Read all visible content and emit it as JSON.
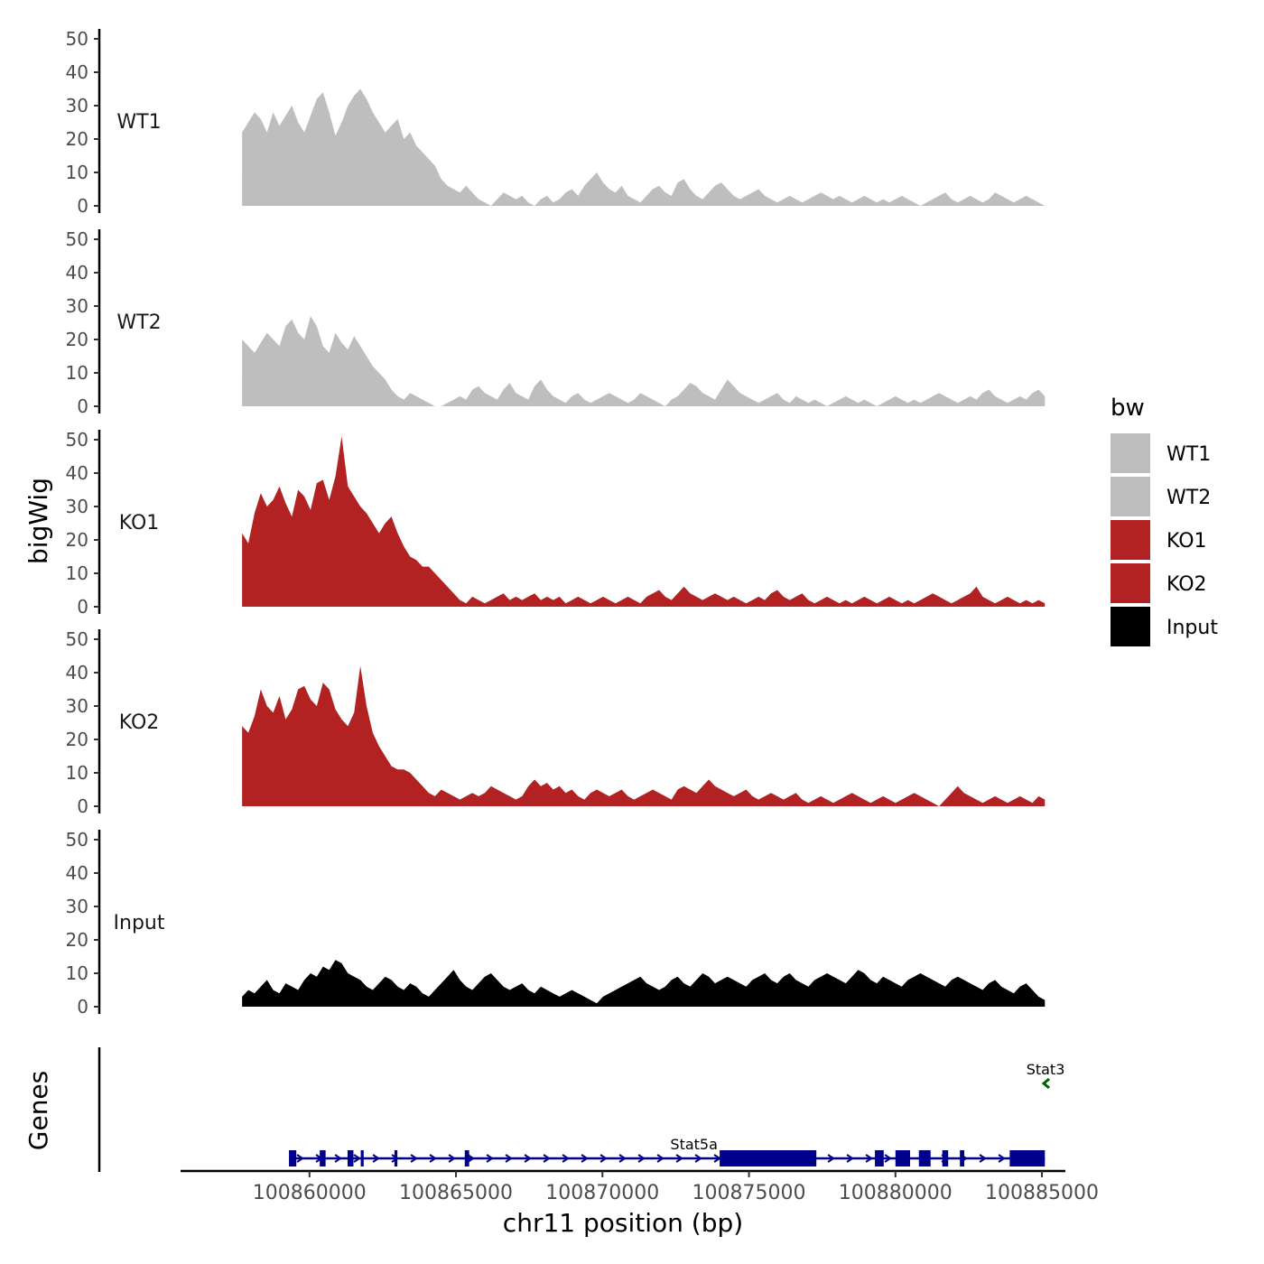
{
  "chart_data": {
    "type": "area",
    "ylabel": "bigWig",
    "xlabel": "chr11 position (bp)",
    "ylim": [
      0,
      50
    ],
    "yticks": [
      0,
      10,
      20,
      30,
      40,
      50
    ],
    "xlim": [
      100855600,
      100885800
    ],
    "xticks": [
      100860000,
      100865000,
      100870000,
      100875000,
      100880000,
      100885000
    ],
    "xtick_labels": [
      "100860000",
      "100865000",
      "100870000",
      "100875000",
      "100880000",
      "100885000"
    ],
    "signal_range": [
      100857700,
      100885100
    ],
    "legend": {
      "title": "bw",
      "position": "right",
      "entries": [
        {
          "label": "WT1",
          "color": "#bebebe"
        },
        {
          "label": "WT2",
          "color": "#bebebe"
        },
        {
          "label": "KO1",
          "color": "#b22222"
        },
        {
          "label": "KO2",
          "color": "#b22222"
        },
        {
          "label": "Input",
          "color": "#000000"
        }
      ]
    },
    "series": [
      {
        "name": "WT1",
        "color": "#bebebe",
        "values": [
          22,
          25,
          28,
          26,
          22,
          28,
          24,
          27,
          30,
          25,
          22,
          27,
          32,
          34,
          28,
          21,
          25,
          30,
          33,
          35,
          32,
          28,
          25,
          22,
          24,
          26,
          20,
          22,
          18,
          16,
          14,
          12,
          8,
          6,
          5,
          4,
          6,
          4,
          2,
          1,
          0,
          2,
          4,
          3,
          2,
          3,
          1,
          0,
          2,
          3,
          1,
          2,
          4,
          5,
          3,
          6,
          8,
          10,
          7,
          5,
          4,
          6,
          3,
          2,
          1,
          3,
          5,
          6,
          4,
          3,
          7,
          8,
          5,
          3,
          2,
          4,
          6,
          7,
          5,
          3,
          2,
          3,
          4,
          5,
          3,
          2,
          1,
          2,
          3,
          2,
          1,
          2,
          3,
          4,
          3,
          2,
          3,
          2,
          1,
          2,
          3,
          2,
          1,
          2,
          1,
          2,
          3,
          2,
          1,
          0,
          1,
          2,
          3,
          4,
          2,
          1,
          2,
          3,
          2,
          1,
          2,
          4,
          3,
          2,
          1,
          2,
          3,
          2,
          1,
          0
        ]
      },
      {
        "name": "WT2",
        "color": "#bebebe",
        "values": [
          20,
          18,
          16,
          19,
          22,
          20,
          18,
          24,
          26,
          22,
          20,
          27,
          24,
          18,
          16,
          22,
          19,
          17,
          21,
          18,
          15,
          12,
          10,
          8,
          5,
          3,
          2,
          4,
          3,
          2,
          1,
          0,
          0,
          1,
          2,
          3,
          2,
          5,
          6,
          4,
          3,
          2,
          5,
          7,
          4,
          3,
          2,
          6,
          8,
          5,
          3,
          2,
          1,
          3,
          4,
          2,
          1,
          2,
          3,
          4,
          3,
          2,
          1,
          2,
          4,
          3,
          2,
          1,
          0,
          2,
          3,
          5,
          7,
          6,
          4,
          3,
          2,
          5,
          8,
          6,
          4,
          3,
          2,
          1,
          2,
          3,
          4,
          2,
          1,
          3,
          2,
          1,
          2,
          1,
          0,
          1,
          2,
          3,
          2,
          1,
          2,
          1,
          0,
          1,
          2,
          3,
          2,
          1,
          2,
          1,
          2,
          3,
          4,
          3,
          2,
          1,
          2,
          3,
          2,
          4,
          5,
          3,
          2,
          1,
          2,
          3,
          2,
          4,
          5,
          3
        ]
      },
      {
        "name": "KO1",
        "color": "#b22222",
        "values": [
          22,
          19,
          28,
          34,
          30,
          32,
          36,
          31,
          27,
          35,
          33,
          29,
          37,
          38,
          32,
          39,
          51,
          36,
          33,
          30,
          28,
          25,
          22,
          25,
          27,
          22,
          18,
          15,
          14,
          12,
          12,
          10,
          8,
          6,
          4,
          2,
          1,
          3,
          2,
          1,
          2,
          3,
          4,
          2,
          3,
          2,
          3,
          4,
          2,
          3,
          2,
          3,
          1,
          2,
          3,
          2,
          1,
          2,
          3,
          2,
          1,
          2,
          3,
          2,
          1,
          3,
          4,
          5,
          3,
          2,
          4,
          6,
          4,
          3,
          2,
          3,
          4,
          3,
          2,
          3,
          2,
          1,
          2,
          3,
          2,
          4,
          5,
          3,
          2,
          3,
          4,
          2,
          1,
          2,
          3,
          2,
          1,
          2,
          1,
          2,
          3,
          2,
          1,
          2,
          3,
          2,
          1,
          2,
          1,
          2,
          3,
          4,
          3,
          2,
          1,
          2,
          3,
          4,
          6,
          3,
          2,
          1,
          2,
          3,
          2,
          1,
          2,
          1,
          2,
          1
        ]
      },
      {
        "name": "KO2",
        "color": "#b22222",
        "values": [
          24,
          22,
          27,
          35,
          30,
          28,
          33,
          26,
          29,
          35,
          36,
          32,
          30,
          37,
          35,
          29,
          26,
          24,
          28,
          42,
          30,
          22,
          18,
          15,
          12,
          11,
          11,
          10,
          8,
          6,
          4,
          3,
          5,
          4,
          3,
          2,
          3,
          4,
          3,
          4,
          6,
          5,
          4,
          3,
          2,
          3,
          6,
          8,
          6,
          7,
          5,
          6,
          4,
          5,
          3,
          2,
          4,
          5,
          4,
          3,
          4,
          5,
          3,
          2,
          3,
          4,
          5,
          4,
          3,
          2,
          5,
          6,
          5,
          4,
          6,
          8,
          6,
          5,
          4,
          3,
          4,
          5,
          3,
          2,
          3,
          4,
          3,
          2,
          3,
          4,
          2,
          1,
          2,
          3,
          2,
          1,
          2,
          3,
          4,
          3,
          2,
          1,
          2,
          3,
          2,
          1,
          2,
          3,
          4,
          3,
          2,
          1,
          0,
          2,
          4,
          6,
          4,
          3,
          2,
          1,
          2,
          3,
          2,
          1,
          2,
          3,
          2,
          1,
          3,
          2
        ]
      },
      {
        "name": "Input",
        "color": "#000000",
        "values": [
          3,
          5,
          4,
          6,
          8,
          5,
          4,
          7,
          6,
          5,
          8,
          10,
          9,
          12,
          11,
          14,
          13,
          10,
          9,
          8,
          6,
          5,
          7,
          9,
          8,
          6,
          5,
          7,
          6,
          4,
          3,
          5,
          7,
          9,
          11,
          8,
          6,
          5,
          7,
          9,
          10,
          8,
          6,
          5,
          6,
          7,
          5,
          4,
          6,
          5,
          4,
          3,
          4,
          5,
          4,
          3,
          2,
          1,
          3,
          4,
          5,
          6,
          7,
          8,
          9,
          7,
          6,
          5,
          6,
          8,
          9,
          7,
          6,
          8,
          10,
          9,
          7,
          8,
          9,
          8,
          7,
          6,
          8,
          9,
          10,
          8,
          7,
          9,
          10,
          8,
          7,
          6,
          8,
          9,
          10,
          9,
          8,
          7,
          9,
          11,
          10,
          8,
          7,
          9,
          8,
          7,
          6,
          8,
          9,
          10,
          9,
          8,
          7,
          6,
          8,
          9,
          8,
          7,
          6,
          5,
          7,
          8,
          6,
          5,
          4,
          6,
          7,
          5,
          3,
          2
        ]
      }
    ],
    "genes_track": {
      "ylabel": "Genes",
      "genes": [
        {
          "name": "Stat5a",
          "strand": "+",
          "color": "#00008b",
          "start": 100859300,
          "end": 100885100,
          "exons": [
            [
              100859300,
              100859550
            ],
            [
              100860350,
              100860550
            ],
            [
              100861300,
              100861500
            ],
            [
              100861750,
              100861850
            ],
            [
              100862900,
              100863000
            ],
            [
              100865300,
              100865450
            ],
            [
              100874000,
              100877300
            ],
            [
              100879300,
              100879600
            ],
            [
              100880000,
              100880500
            ],
            [
              100880800,
              100881200
            ],
            [
              100881600,
              100881800
            ],
            [
              100882200,
              100882350
            ],
            [
              100883900,
              100885100
            ]
          ]
        },
        {
          "name": "Stat3",
          "strand": "-",
          "color": "#006400",
          "start": 100885000,
          "end": 100885200,
          "exons": []
        }
      ]
    }
  }
}
